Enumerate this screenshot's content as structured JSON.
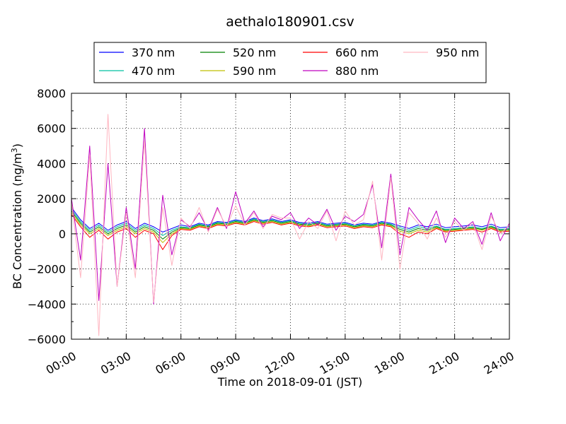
{
  "chart_data": {
    "type": "line",
    "title": "aethalo180901.csv",
    "xlabel": "Time on 2018-09-01 (JST)",
    "ylabel": "BC Concentration (ng/m",
    "ylabel_superscript": "3",
    "ylabel_suffix": ")",
    "xlim": [
      "2018-09-01 00:00",
      "2018-09-02 00:00"
    ],
    "ylim": [
      -6000,
      8000
    ],
    "x_tick_labels": [
      "00:00",
      "03:00",
      "06:00",
      "09:00",
      "12:00",
      "15:00",
      "18:00",
      "21:00",
      "24:00"
    ],
    "x_tick_hours": [
      0,
      3,
      6,
      9,
      12,
      15,
      18,
      21,
      24
    ],
    "y_tick_labels": [
      "8000",
      "6000",
      "4000",
      "2000",
      "0",
      "−2000",
      "−4000",
      "−6000"
    ],
    "y_ticks": [
      8000,
      6000,
      4000,
      2000,
      0,
      -2000,
      -4000,
      -6000
    ],
    "grid": true,
    "legend_position": "top",
    "x_hours": [
      0,
      0.5,
      1,
      1.5,
      2,
      2.5,
      3,
      3.5,
      4,
      4.5,
      5,
      5.5,
      6,
      6.5,
      7,
      7.5,
      8,
      8.5,
      9,
      9.5,
      10,
      10.5,
      11,
      11.5,
      12,
      12.5,
      13,
      13.5,
      14,
      14.5,
      15,
      15.5,
      16,
      16.5,
      17,
      17.5,
      18,
      18.5,
      19,
      19.5,
      20,
      20.5,
      21,
      21.5,
      22,
      22.5,
      23,
      23.5,
      24
    ],
    "series": [
      {
        "name": "370 nm",
        "color": "#0000ff",
        "values": [
          1500,
          800,
          300,
          600,
          200,
          500,
          700,
          300,
          600,
          400,
          100,
          300,
          500,
          400,
          600,
          500,
          700,
          650,
          800,
          700,
          900,
          750,
          850,
          700,
          800,
          650,
          600,
          700,
          550,
          600,
          650,
          500,
          600,
          550,
          700,
          600,
          450,
          300,
          500,
          400,
          550,
          350,
          400,
          450,
          500,
          400,
          550,
          350,
          400
        ]
      },
      {
        "name": "470 nm",
        "color": "#00c0a0",
        "values": [
          1400,
          700,
          200,
          500,
          100,
          400,
          600,
          200,
          500,
          300,
          -100,
          200,
          400,
          350,
          550,
          450,
          650,
          600,
          750,
          650,
          850,
          700,
          800,
          650,
          750,
          600,
          550,
          650,
          500,
          550,
          600,
          450,
          550,
          500,
          650,
          550,
          350,
          200,
          400,
          300,
          450,
          250,
          300,
          350,
          400,
          300,
          450,
          250,
          300
        ]
      },
      {
        "name": "520 nm",
        "color": "#008000",
        "values": [
          1300,
          600,
          100,
          400,
          0,
          300,
          500,
          100,
          400,
          200,
          -300,
          100,
          350,
          300,
          500,
          400,
          600,
          550,
          700,
          600,
          800,
          650,
          750,
          600,
          700,
          550,
          500,
          600,
          450,
          500,
          550,
          400,
          500,
          450,
          600,
          500,
          250,
          100,
          300,
          200,
          400,
          200,
          250,
          300,
          350,
          250,
          400,
          200,
          250
        ]
      },
      {
        "name": "590 nm",
        "color": "#bfbf00",
        "values": [
          1200,
          500,
          0,
          300,
          -100,
          200,
          400,
          0,
          300,
          100,
          -500,
          0,
          300,
          250,
          450,
          350,
          550,
          500,
          650,
          550,
          750,
          600,
          700,
          550,
          650,
          500,
          450,
          550,
          400,
          450,
          500,
          350,
          450,
          400,
          550,
          450,
          150,
          0,
          200,
          100,
          350,
          150,
          200,
          250,
          300,
          200,
          350,
          150,
          200
        ]
      },
      {
        "name": "660 nm",
        "color": "#ff0000",
        "values": [
          1100,
          400,
          -200,
          200,
          -300,
          100,
          300,
          -200,
          200,
          0,
          -900,
          -100,
          250,
          200,
          400,
          300,
          500,
          450,
          600,
          500,
          700,
          550,
          650,
          500,
          600,
          450,
          400,
          500,
          350,
          400,
          450,
          300,
          400,
          350,
          500,
          400,
          0,
          -200,
          100,
          0,
          300,
          100,
          150,
          200,
          250,
          100,
          300,
          100,
          150
        ]
      },
      {
        "name": "880 nm",
        "color": "#bf00bf",
        "values": [
          2000,
          -1500,
          5000,
          -3800,
          4000,
          -3000,
          1500,
          -2000,
          6000,
          -4000,
          2200,
          -1200,
          800,
          400,
          1200,
          200,
          1500,
          300,
          2400,
          600,
          1300,
          400,
          1000,
          800,
          1200,
          300,
          900,
          500,
          1400,
          200,
          1000,
          700,
          1100,
          2800,
          -800,
          3400,
          -1200,
          1500,
          800,
          200,
          1300,
          -500,
          900,
          300,
          700,
          -600,
          1200,
          -400,
          600
        ]
      },
      {
        "name": "950 nm",
        "color": "#ffb6c1",
        "values": [
          1800,
          -2500,
          4500,
          -5800,
          6800,
          -3000,
          1200,
          -2500,
          5300,
          -3900,
          1500,
          -1800,
          900,
          300,
          1500,
          100,
          1400,
          400,
          1600,
          500,
          1200,
          300,
          1100,
          900,
          900,
          -300,
          700,
          300,
          1300,
          -400,
          1300,
          500,
          800,
          3000,
          -1500,
          3200,
          -2000,
          1200,
          600,
          -300,
          900,
          -200,
          700,
          200,
          600,
          -900,
          1000,
          0,
          500
        ]
      }
    ]
  }
}
